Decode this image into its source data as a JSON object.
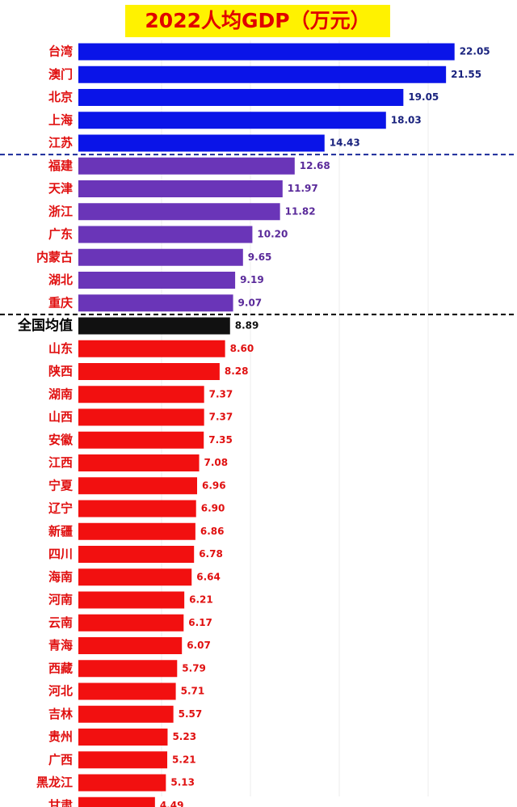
{
  "chart_data": {
    "type": "bar",
    "orientation": "horizontal",
    "title": "2022人均GDP（万元）",
    "categories": [
      "台湾",
      "澳门",
      "北京",
      "上海",
      "江苏",
      "福建",
      "天津",
      "浙江",
      "广东",
      "内蒙古",
      "湖北",
      "重庆",
      "全国均值",
      "山东",
      "陕西",
      "湖南",
      "山西",
      "安徽",
      "江西",
      "宁夏",
      "辽宁",
      "新疆",
      "四川",
      "海南",
      "河南",
      "云南",
      "青海",
      "西藏",
      "河北",
      "吉林",
      "贵州",
      "广西",
      "黑龙江",
      "甘肃"
    ],
    "values": [
      22.05,
      21.55,
      19.05,
      18.03,
      14.43,
      12.68,
      11.97,
      11.82,
      10.2,
      9.65,
      9.19,
      9.07,
      8.89,
      8.6,
      8.28,
      7.37,
      7.37,
      7.35,
      7.08,
      6.96,
      6.9,
      6.86,
      6.78,
      6.64,
      6.21,
      6.17,
      6.07,
      5.79,
      5.71,
      5.57,
      5.23,
      5.21,
      5.13,
      4.49
    ],
    "value_labels": [
      "22.05",
      "21.55",
      "19.05",
      "18.03",
      "14.43",
      "12.68",
      "11.97",
      "11.82",
      "10.20",
      "9.65",
      "9.19",
      "9.07",
      "8.89",
      "8.60",
      "8.28",
      "7.37",
      "7.37",
      "7.35",
      "7.08",
      "6.96",
      "6.90",
      "6.86",
      "6.78",
      "6.64",
      "6.21",
      "6.17",
      "6.07",
      "5.79",
      "5.71",
      "5.57",
      "5.23",
      "5.21",
      "5.13",
      "4.49"
    ],
    "colors": [
      "#0a14e8",
      "#0a14e8",
      "#0a14e8",
      "#0a14e8",
      "#0a14e8",
      "#6a35b8",
      "#6a35b8",
      "#6a35b8",
      "#6a35b8",
      "#6a35b8",
      "#6a35b8",
      "#6a35b8",
      "#111111",
      "#f21010",
      "#f21010",
      "#f21010",
      "#f21010",
      "#f21010",
      "#f21010",
      "#f21010",
      "#f21010",
      "#f21010",
      "#f21010",
      "#f21010",
      "#f21010",
      "#f21010",
      "#f21010",
      "#f21010",
      "#f21010",
      "#f21010",
      "#f21010",
      "#f21010",
      "#f21010",
      "#f21010"
    ],
    "xlim": [
      0,
      25
    ]
  }
}
